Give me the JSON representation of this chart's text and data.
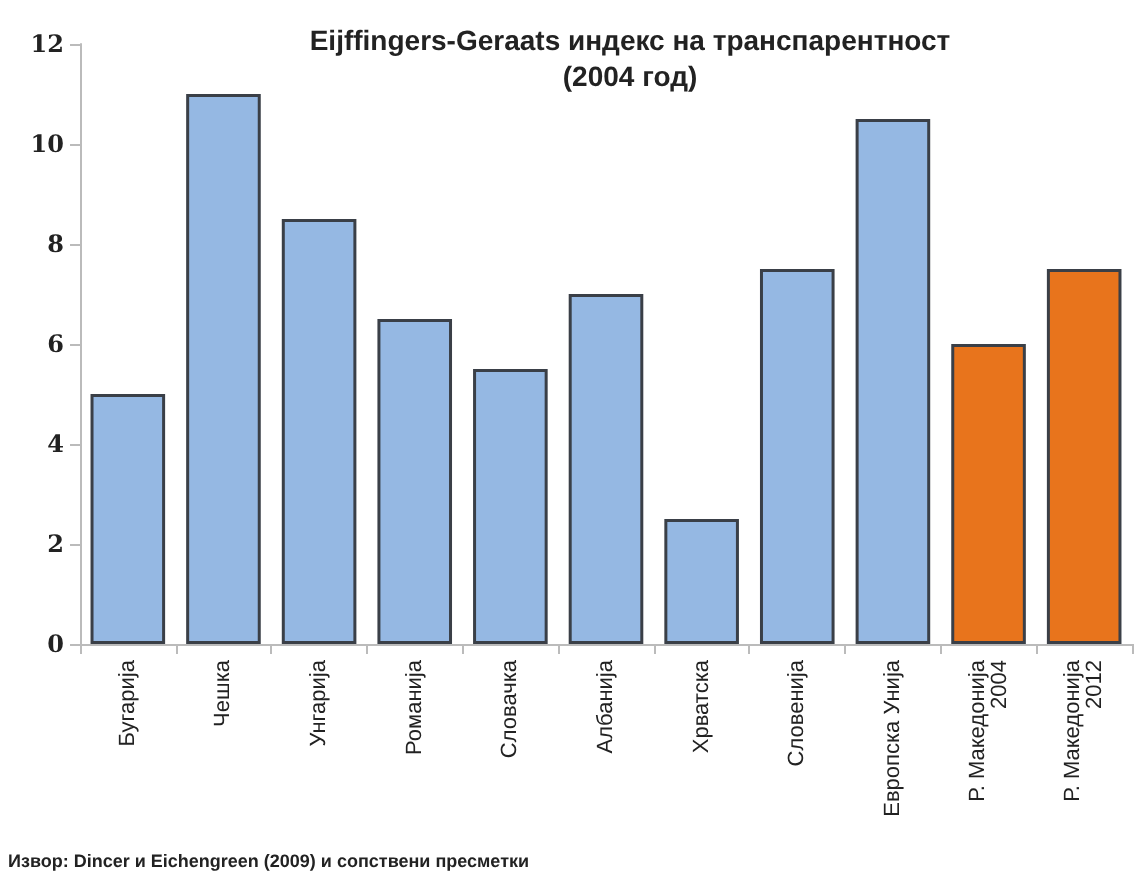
{
  "chart_data": {
    "type": "bar",
    "title": "Eijffingers-Geraats индекс на транспарентност\n(2004 год)",
    "categories": [
      "Бугарија",
      "Чешка",
      "Унгарија",
      "Романија",
      "Словачка",
      "Албанија",
      "Хрватска",
      "Словенија",
      "Европска Унија",
      "Р. Македонија\n2004",
      "Р. Македонија\n2012"
    ],
    "values": [
      5,
      11,
      8.5,
      6.5,
      5.5,
      7,
      2.5,
      7.5,
      10.5,
      6,
      7.5
    ],
    "colors": [
      "#95b8e3",
      "#95b8e3",
      "#95b8e3",
      "#95b8e3",
      "#95b8e3",
      "#95b8e3",
      "#95b8e3",
      "#95b8e3",
      "#95b8e3",
      "#e8741c",
      "#e8741c"
    ],
    "ylim": [
      0,
      12
    ],
    "yticks": [
      0,
      2,
      4,
      6,
      8,
      10,
      12
    ],
    "grid": false,
    "annotations": [
      "Извор: Dincer и Eichengreen (2009) и сопствени пресметки"
    ]
  }
}
